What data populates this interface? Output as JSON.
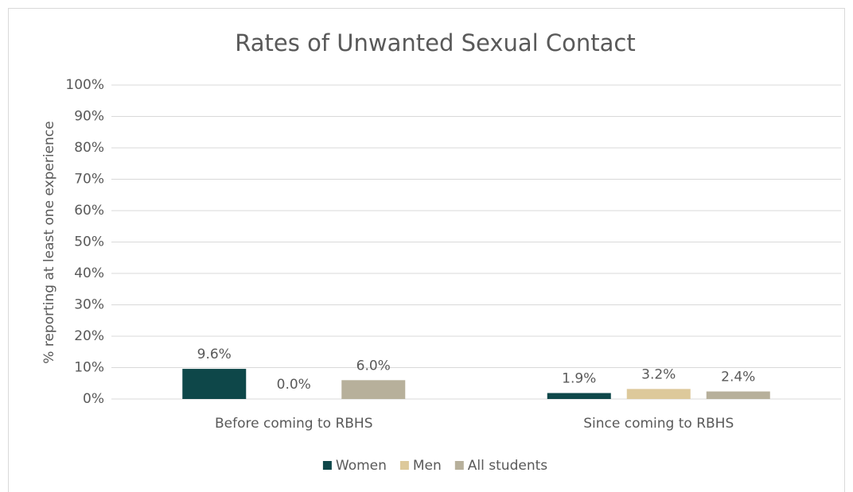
{
  "chart_data": {
    "type": "bar",
    "title": "Rates of Unwanted Sexual Contact",
    "y_label": "% reporting at least one experience",
    "categories": [
      "Before coming to RBHS",
      "Since coming to RBHS"
    ],
    "series": [
      {
        "name": "Women",
        "color": "#0e4749",
        "values": [
          9.6,
          1.9
        ],
        "value_labels": [
          "9.6%",
          "1.9%"
        ]
      },
      {
        "name": "Men",
        "color": "#ddc99b",
        "values": [
          0.0,
          3.2
        ],
        "value_labels": [
          "0.0%",
          "3.2%"
        ]
      },
      {
        "name": "All students",
        "color": "#b7b09b",
        "values": [
          6.0,
          2.4
        ],
        "value_labels": [
          "6.0%",
          "2.4%"
        ]
      }
    ],
    "ylim": [
      0,
      100
    ],
    "yticks": [
      {
        "value": 0,
        "label": "0%"
      },
      {
        "value": 10,
        "label": "10%"
      },
      {
        "value": 20,
        "label": "20%"
      },
      {
        "value": 30,
        "label": "30%"
      },
      {
        "value": 40,
        "label": "40%"
      },
      {
        "value": 50,
        "label": "50%"
      },
      {
        "value": 60,
        "label": "60%"
      },
      {
        "value": 70,
        "label": "70%"
      },
      {
        "value": 80,
        "label": "80%"
      },
      {
        "value": 90,
        "label": "90%"
      },
      {
        "value": 100,
        "label": "100%"
      }
    ],
    "grid": true,
    "legend": "bottom"
  }
}
